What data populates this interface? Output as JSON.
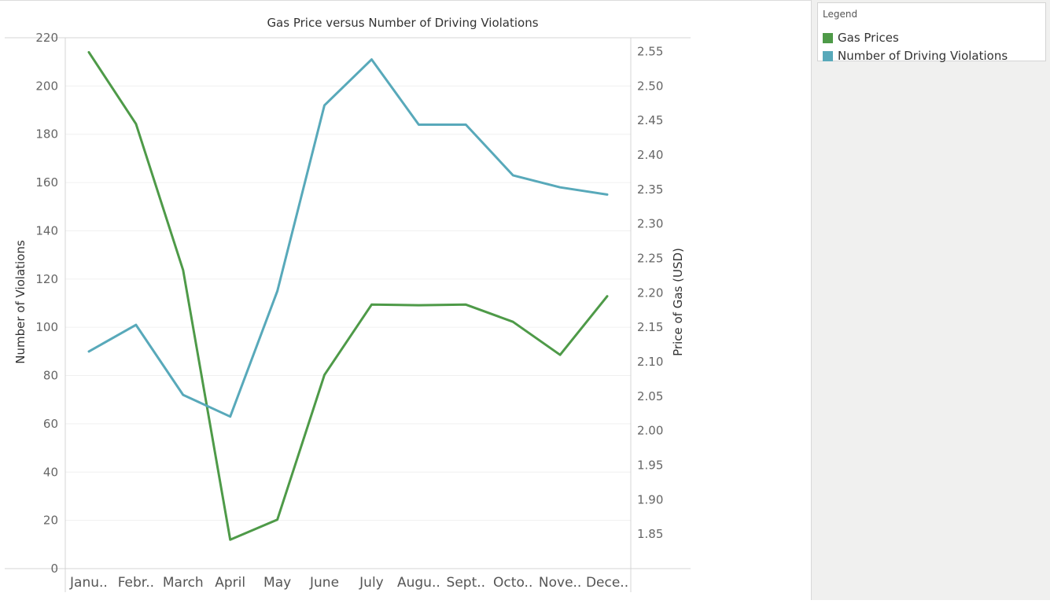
{
  "chart_data": {
    "type": "line",
    "title": "Gas Price versus Number of Driving Violations",
    "categories": [
      "Janu..",
      "Febr..",
      "March",
      "April",
      "May",
      "June",
      "July",
      "Augu..",
      "Sept..",
      "Octo..",
      "Nove..",
      "Dece.."
    ],
    "y_left": {
      "label": "Number of Violations",
      "range": [
        0,
        220
      ],
      "ticks": [
        "0",
        "20",
        "40",
        "60",
        "80",
        "100",
        "120",
        "140",
        "160",
        "180",
        "200",
        "220"
      ]
    },
    "y_right": {
      "label": "Price of Gas (USD)",
      "range": [
        1.8,
        2.57
      ],
      "ticks": [
        "1.85",
        "1.90",
        "1.95",
        "2.00",
        "2.05",
        "2.10",
        "2.15",
        "2.20",
        "2.25",
        "2.30",
        "2.35",
        "2.40",
        "2.45",
        "2.50",
        "2.55"
      ]
    },
    "series": [
      {
        "name": "Gas Prices",
        "axis": "right",
        "color": "#4e9a48",
        "values": [
          2.549,
          2.445,
          2.233,
          1.842,
          1.871,
          2.081,
          2.183,
          2.182,
          2.183,
          2.158,
          2.11,
          2.195
        ]
      },
      {
        "name": "Number of Driving Violations",
        "axis": "left",
        "color": "#58a9ba",
        "values": [
          90,
          101,
          72,
          63,
          115,
          192,
          211,
          184,
          184,
          163,
          158,
          155
        ]
      }
    ],
    "grid": true,
    "legend_position": "top-right"
  },
  "legend": {
    "title": "Legend",
    "items": [
      {
        "label": "Gas Prices",
        "color": "#4e9a48"
      },
      {
        "label": "Number of Driving Violations",
        "color": "#58a9ba"
      }
    ]
  }
}
